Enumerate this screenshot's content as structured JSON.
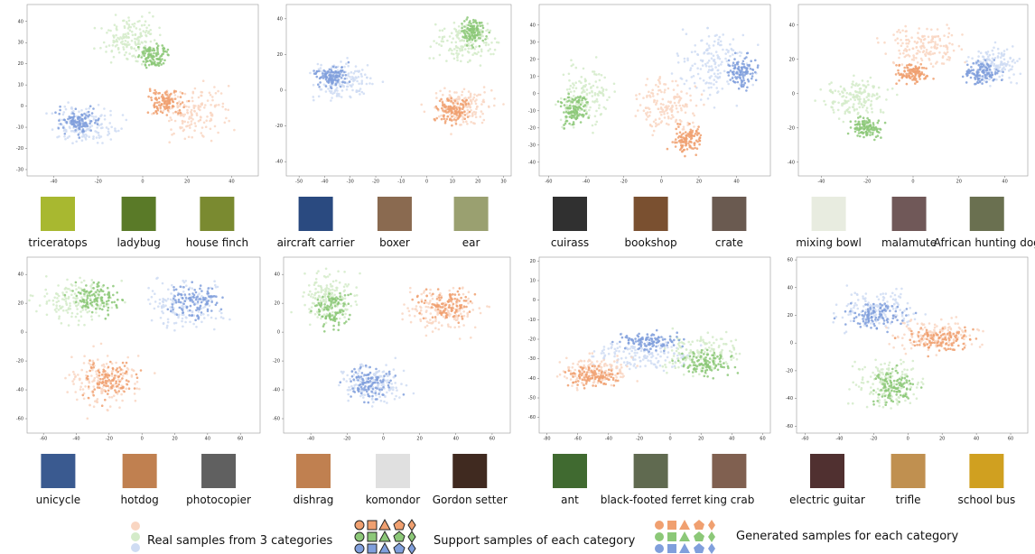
{
  "panels": [
    {
      "xlim": [
        -52,
        52
      ],
      "ylim": [
        -33,
        48
      ],
      "xticks": [
        -40,
        -20,
        0,
        20,
        40
      ],
      "yticks": [
        -30,
        -20,
        -10,
        0,
        10,
        20,
        30,
        40
      ],
      "labels": [
        "triceratops",
        "ladybug",
        "house finch"
      ]
    },
    {
      "xlim": [
        -55,
        33
      ],
      "ylim": [
        -48,
        48
      ],
      "xticks": [
        -50,
        -40,
        -30,
        -20,
        -10,
        0,
        10,
        20,
        30
      ],
      "yticks": [
        -40,
        -20,
        0,
        20,
        40
      ],
      "labels": [
        "aircraft carrier",
        "boxer",
        "ear"
      ]
    },
    {
      "xlim": [
        -65,
        58
      ],
      "ylim": [
        -48,
        52
      ],
      "xticks": [
        -60,
        -40,
        -20,
        0,
        20,
        40
      ],
      "yticks": [
        -40,
        -30,
        -20,
        -10,
        0,
        10,
        20,
        30,
        40
      ],
      "labels": [
        "cuirass",
        "bookshop",
        "crate"
      ]
    },
    {
      "xlim": [
        -50,
        50
      ],
      "ylim": [
        -48,
        52
      ],
      "xticks": [
        -40,
        -20,
        0,
        20,
        40
      ],
      "yticks": [
        -40,
        -20,
        0,
        20,
        40
      ],
      "labels": [
        "mixing bowl",
        "malamute",
        "African hunting dog"
      ]
    },
    {
      "xlim": [
        -70,
        72
      ],
      "ylim": [
        -70,
        52
      ],
      "xticks": [
        -60,
        -40,
        -20,
        0,
        20,
        40,
        60
      ],
      "yticks": [
        -60,
        -40,
        -20,
        0,
        20,
        40
      ],
      "labels": [
        "unicycle",
        "hotdog",
        "photocopier"
      ]
    },
    {
      "xlim": [
        -55,
        70
      ],
      "ylim": [
        -70,
        52
      ],
      "xticks": [
        -40,
        -20,
        0,
        20,
        40,
        60
      ],
      "yticks": [
        -60,
        -40,
        -20,
        0,
        20,
        40
      ],
      "labels": [
        "dishrag",
        "komondor",
        "Gordon setter"
      ]
    },
    {
      "xlim": [
        -85,
        65
      ],
      "ylim": [
        -68,
        22
      ],
      "xticks": [
        -80,
        -60,
        -40,
        -20,
        0,
        20,
        40,
        60
      ],
      "yticks": [
        -60,
        -50,
        -40,
        -30,
        -20,
        -10,
        0,
        10,
        20
      ],
      "labels": [
        "ant",
        "black-footed ferret",
        "king crab"
      ]
    },
    {
      "xlim": [
        -65,
        70
      ],
      "ylim": [
        -65,
        62
      ],
      "xticks": [
        -60,
        -40,
        -20,
        0,
        20,
        40,
        60
      ],
      "yticks": [
        -60,
        -40,
        -20,
        0,
        20,
        40,
        60
      ],
      "labels": [
        "electric guitar",
        "trifle",
        "school bus"
      ]
    }
  ],
  "legend": {
    "real": "Real samples from 3 categories",
    "support": "Support samples of each category",
    "generated": "Generated samples for each category"
  }
}
